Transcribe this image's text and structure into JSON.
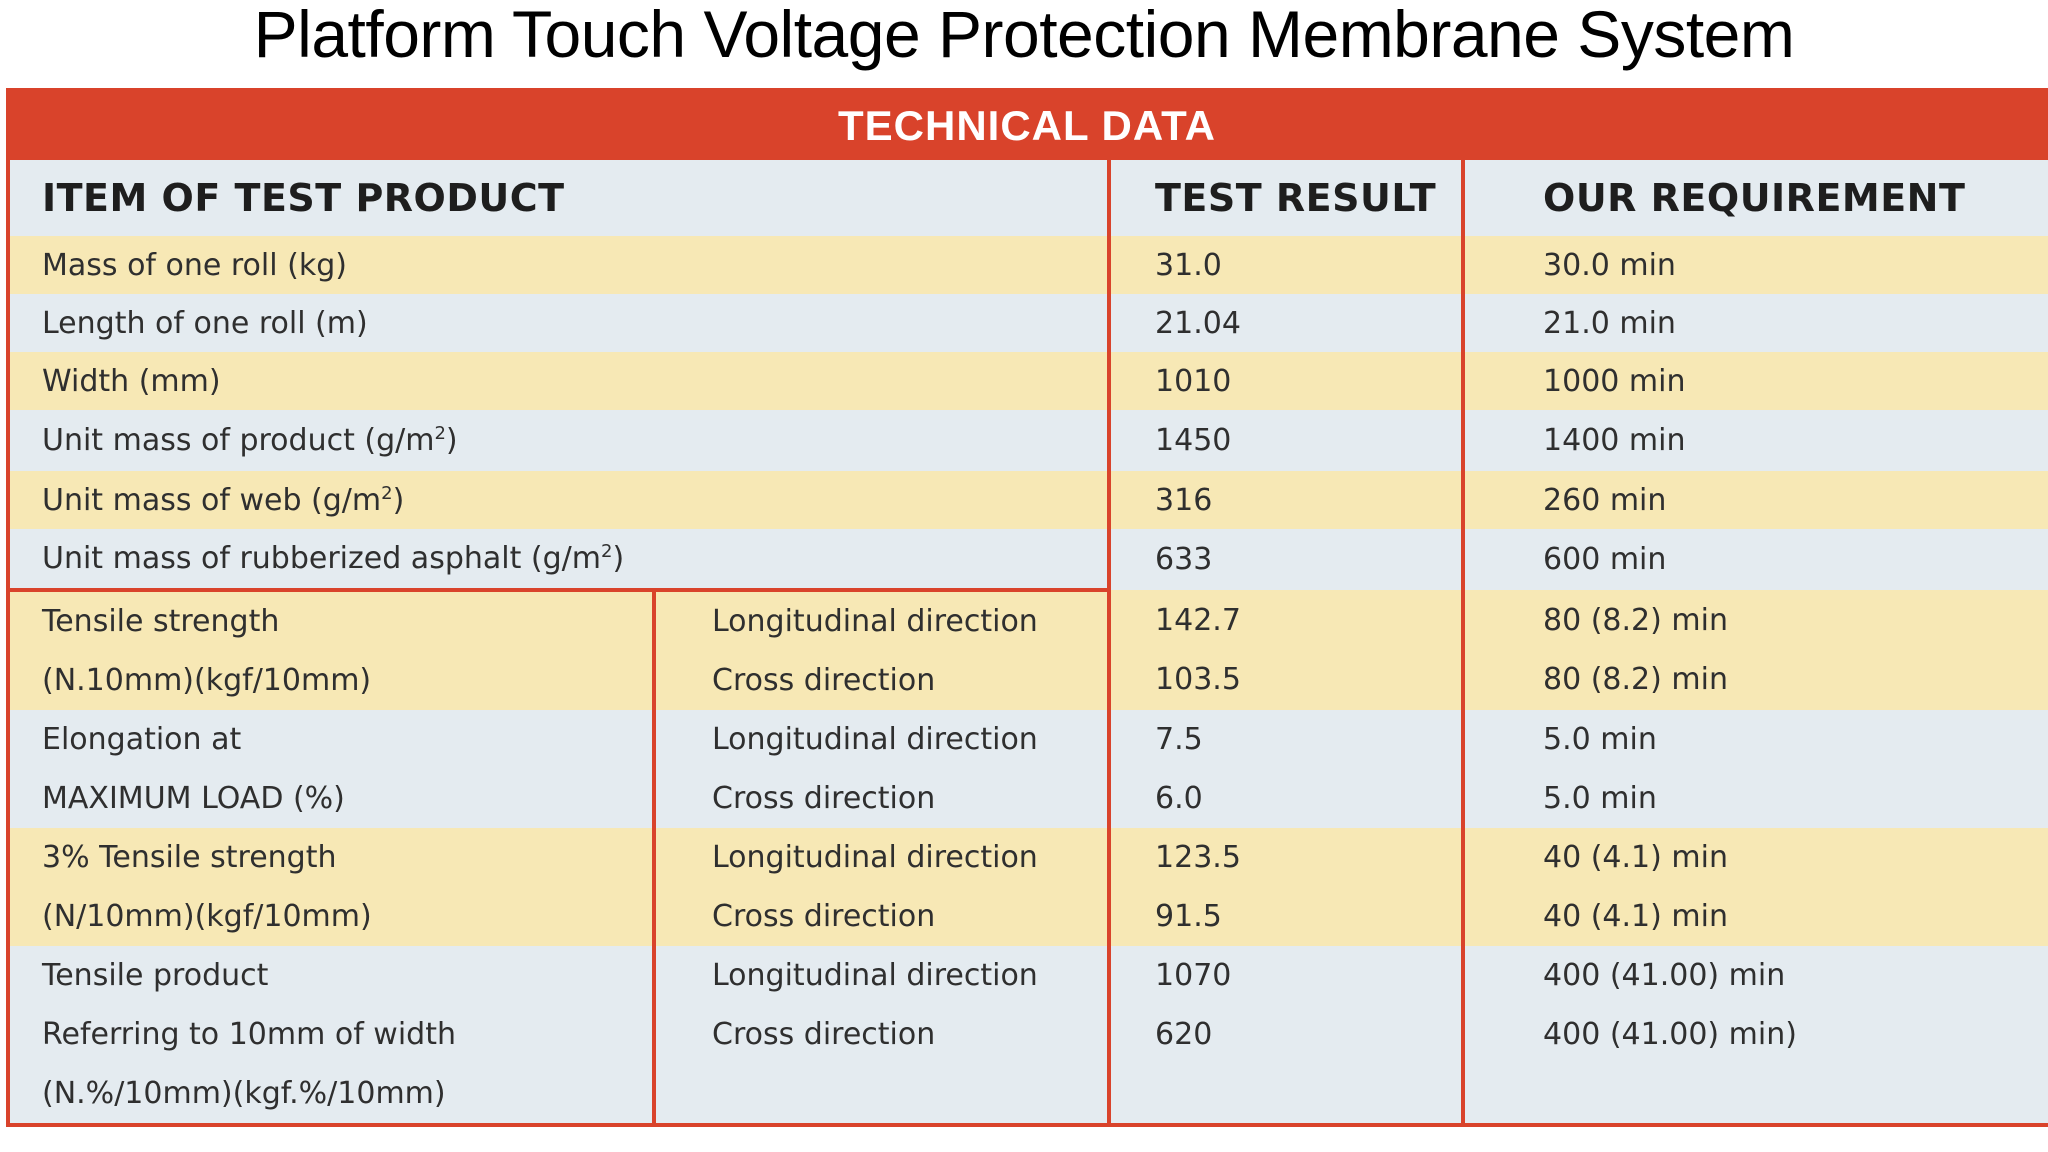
{
  "page": {
    "title": "Platform Touch Voltage Protection Membrane System"
  },
  "colors": {
    "banner": "#d9432b",
    "row_blue": "#e4ebf0",
    "row_yellow": "#f7e8b5"
  },
  "table": {
    "banner": "TECHNICAL DATA",
    "headers": {
      "item": "ITEM OF TEST PRODUCT",
      "result": "TEST RESULT",
      "requirement": "OUR REQUIREMENT"
    },
    "simple_rows": [
      {
        "item": "Mass of one roll (kg)",
        "result": "31.0",
        "requirement": "30.0 min"
      },
      {
        "item": "Length of one roll (m)",
        "result": "21.04",
        "requirement": "21.0 min"
      },
      {
        "item": "Width (mm)",
        "result": "1010",
        "requirement": "1000 min"
      },
      {
        "item": "Unit mass of product (g/m",
        "sup": "2",
        "item_end": ")",
        "result": "1450",
        "requirement": "1400 min"
      },
      {
        "item": "Unit mass of web (g/m",
        "sup": "2",
        "item_end": ")",
        "result": "316",
        "requirement": "260 min"
      },
      {
        "item": "Unit mass of rubberized asphalt (g/m",
        "sup": "2",
        "item_end": ")",
        "result": "633",
        "requirement": "600 min"
      }
    ],
    "split_rows": [
      {
        "item_lines": [
          "Tensile strength",
          "(N.10mm)(kgf/10mm)"
        ],
        "directions": [
          "Longitudinal direction",
          "Cross direction"
        ],
        "results": [
          "142.7",
          "103.5"
        ],
        "requirements": [
          "80 (8.2) min",
          "80 (8.2) min"
        ]
      },
      {
        "item_lines": [
          "Elongation at",
          "MAXIMUM LOAD (%)"
        ],
        "directions": [
          "Longitudinal direction",
          "Cross direction"
        ],
        "results": [
          "7.5",
          "6.0"
        ],
        "requirements": [
          "5.0 min",
          "5.0 min"
        ]
      },
      {
        "item_lines": [
          "3% Tensile strength",
          "(N/10mm)(kgf/10mm)"
        ],
        "directions": [
          "Longitudinal direction",
          "Cross direction"
        ],
        "results": [
          "123.5",
          "91.5"
        ],
        "requirements": [
          "40 (4.1) min",
          "40 (4.1) min"
        ]
      },
      {
        "item_lines": [
          "Tensile product",
          "Referring to 10mm of width",
          "(N.%/10mm)(kgf.%/10mm)"
        ],
        "directions": [
          "Longitudinal direction",
          "Cross direction"
        ],
        "results": [
          "1070",
          "620"
        ],
        "requirements": [
          "400 (41.00) min",
          "400 (41.00) min)"
        ]
      }
    ]
  }
}
